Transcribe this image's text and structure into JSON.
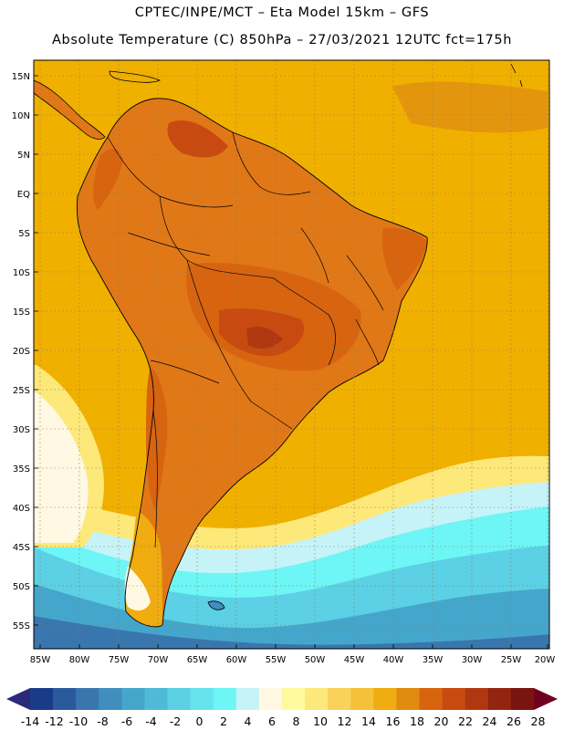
{
  "header": {
    "line1": "CPTEC/INPE/MCT –  Eta Model 15km – GFS",
    "line2": "Absolute Temperature (C) 850hPa – 27/03/2021 12UTC fct=175h"
  },
  "map": {
    "lat_labels": [
      "15N",
      "10N",
      "5N",
      "EQ",
      "5S",
      "10S",
      "15S",
      "20S",
      "25S",
      "30S",
      "35S",
      "40S",
      "45S",
      "50S",
      "55S"
    ],
    "lon_labels": [
      "85W",
      "80W",
      "75W",
      "70W",
      "65W",
      "60W",
      "55W",
      "50W",
      "45W",
      "40W",
      "35W",
      "30W",
      "25W",
      "20W"
    ],
    "ocean_color": "#f0b000",
    "land_color": "#e07818"
  },
  "colorbar": {
    "labels": [
      "-14",
      "-12",
      "-10",
      "-8",
      "-6",
      "-4",
      "-2",
      "0",
      "2",
      "4",
      "6",
      "8",
      "10",
      "12",
      "14",
      "16",
      "18",
      "20",
      "22",
      "24",
      "26",
      "28"
    ],
    "colors": [
      "#1a3c88",
      "#2a5a9c",
      "#3a76ae",
      "#3f8ebe",
      "#45a6cc",
      "#4fbad8",
      "#5cd0e4",
      "#66e4ee",
      "#6ef5f5",
      "#c6f3f8",
      "#fff8e2",
      "#fffa9e",
      "#fde87a",
      "#f8d25a",
      "#f5c03a",
      "#f0ac10",
      "#e08a10",
      "#d86410",
      "#c84a10",
      "#b03810",
      "#922410",
      "#7a1410"
    ],
    "low_arrow_color": "#2a2a7a",
    "high_arrow_color": "#700020"
  }
}
